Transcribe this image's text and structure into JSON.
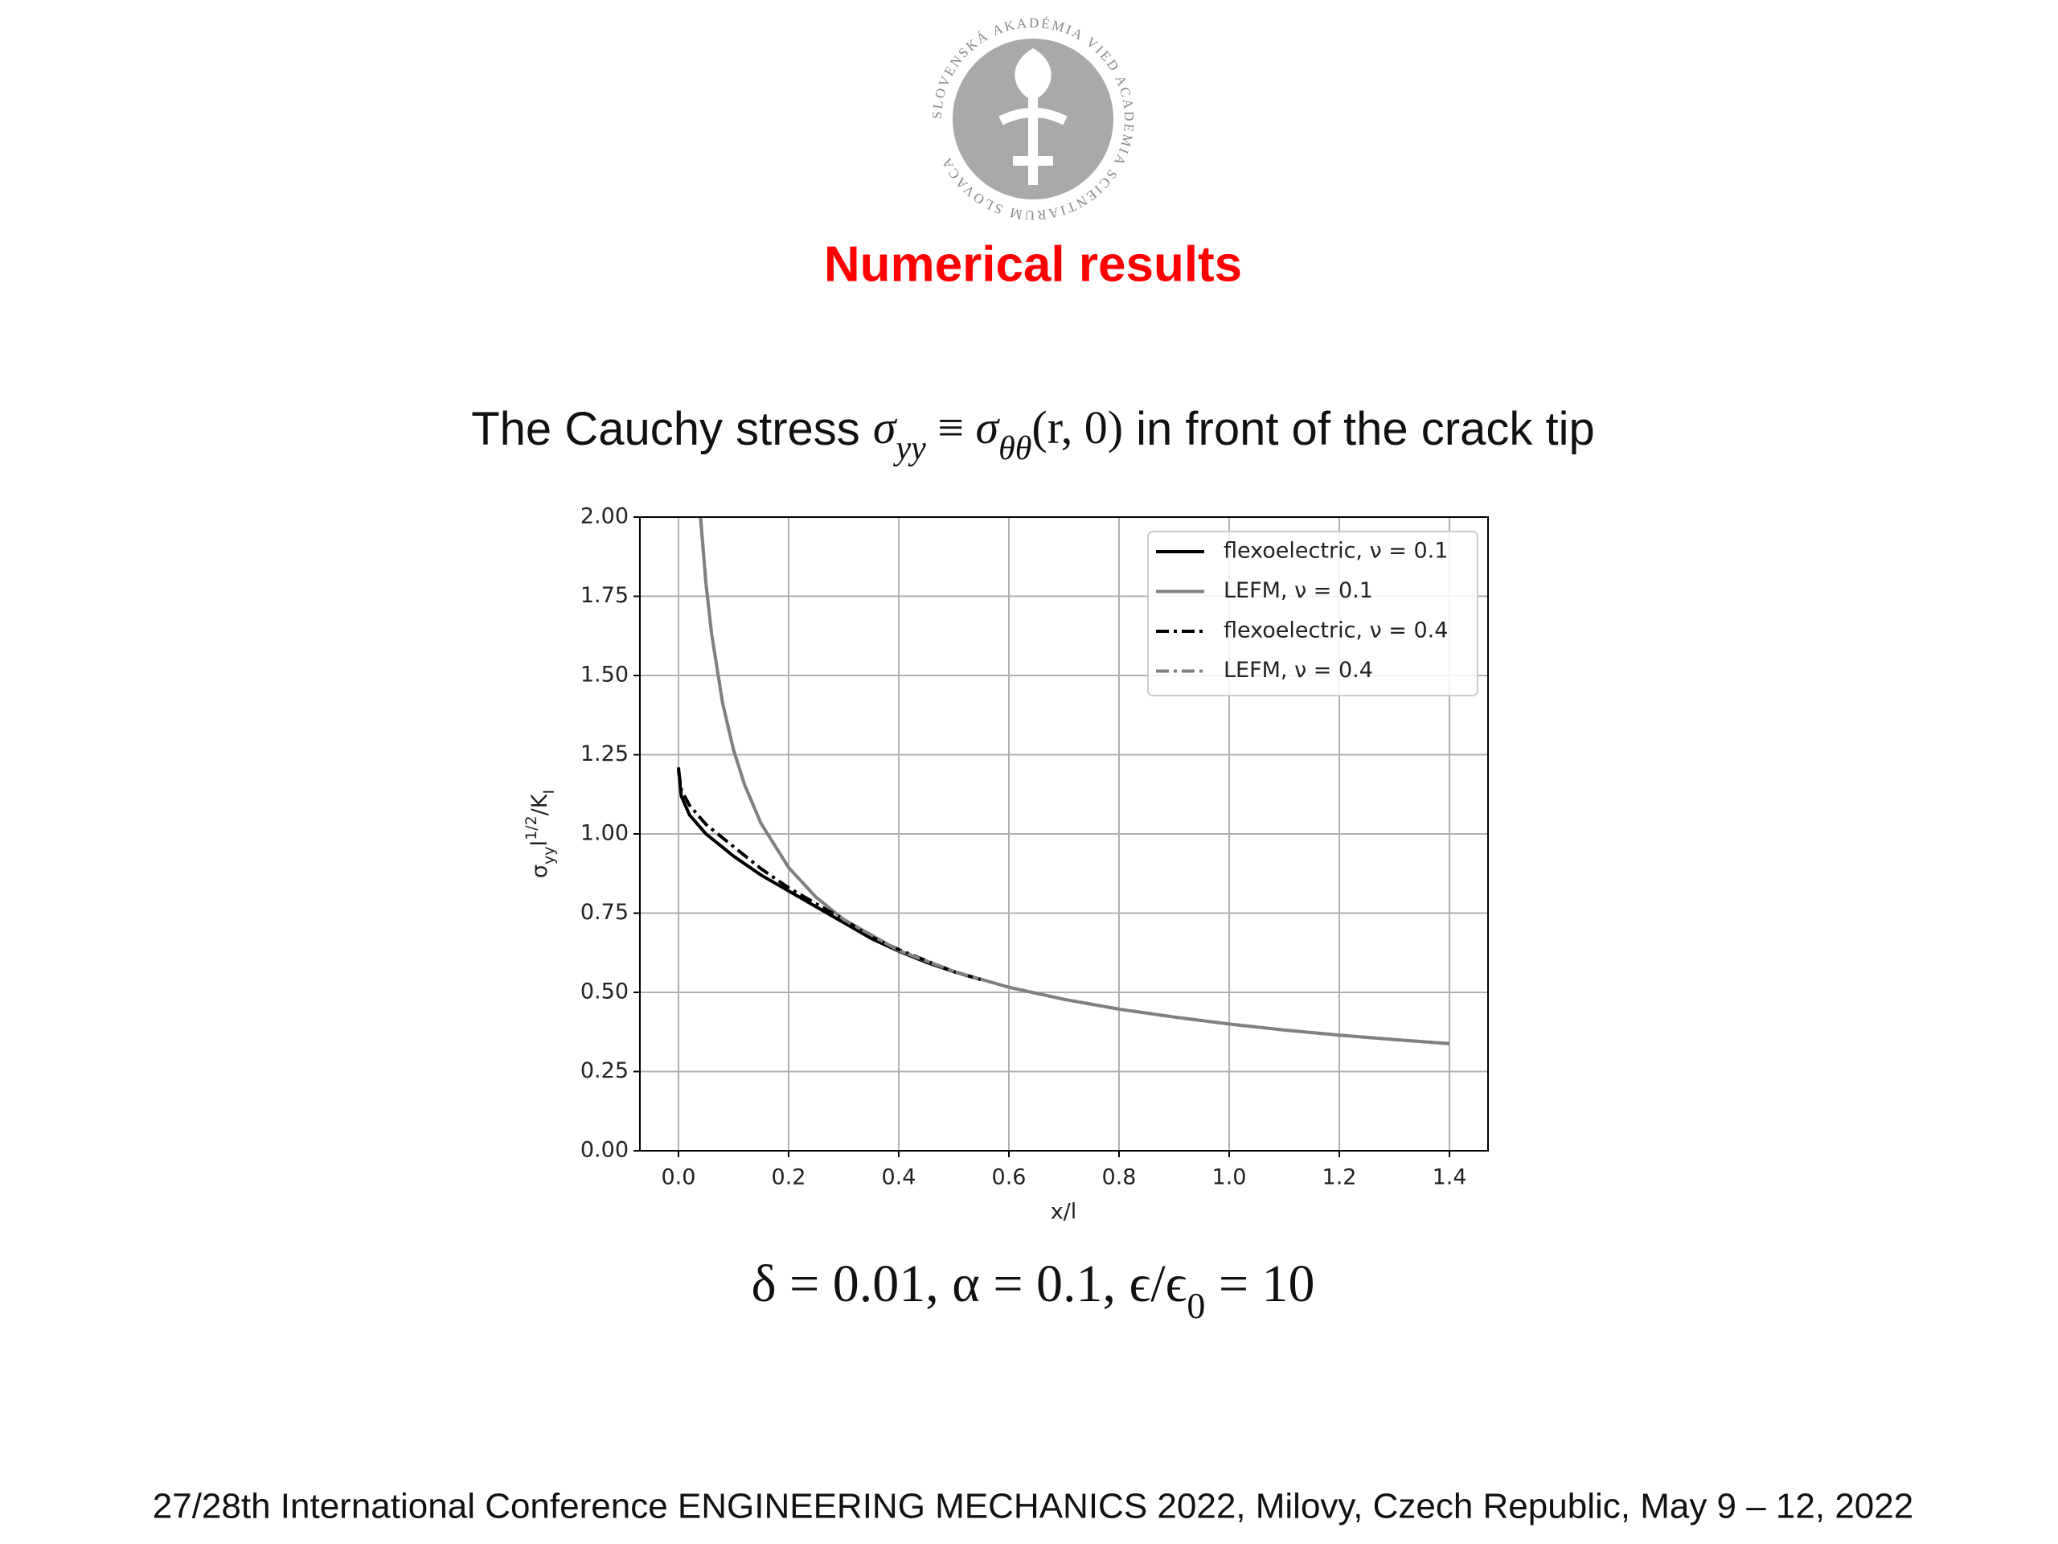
{
  "logo_text": "SLOVENSKÁ AKADÉMIA VIED ACADEMIA SCIENTIARUM SLOVACA",
  "title": "Numerical results",
  "heading": [
    "The Cauchy stress ",
    "σ",
    "yy",
    " ≡ ",
    "σ",
    "θθ",
    "(r, 0)",
    " in front of the crack tip"
  ],
  "parameters": [
    "δ = 0.01, α = 0.1,  ϵ/ϵ",
    "0",
    " = 10"
  ],
  "footer": "27/28th International Conference ENGINEERING MECHANICS 2022, Milovy, Czech Republic, May 9 – 12, 2022",
  "chart_data": {
    "type": "line",
    "xlabel": "x/l",
    "ylabel": [
      "σ",
      "yy",
      "l",
      "1/2",
      "/K",
      "I"
    ],
    "xlim": [
      -0.07,
      1.47
    ],
    "ylim": [
      0,
      2
    ],
    "xticks": [
      {
        "value": 0,
        "label": "0.0"
      },
      {
        "value": 0.2,
        "label": "0.2"
      },
      {
        "value": 0.4,
        "label": "0.4"
      },
      {
        "value": 0.6,
        "label": "0.6"
      },
      {
        "value": 0.8,
        "label": "0.8"
      },
      {
        "value": 1.0,
        "label": "1.0"
      },
      {
        "value": 1.2,
        "label": "1.2"
      },
      {
        "value": 1.4,
        "label": "1.4"
      }
    ],
    "yticks": [
      {
        "value": 0,
        "label": "0.00"
      },
      {
        "value": 0.25,
        "label": "0.25"
      },
      {
        "value": 0.5,
        "label": "0.50"
      },
      {
        "value": 0.75,
        "label": "0.75"
      },
      {
        "value": 1.0,
        "label": "1.00"
      },
      {
        "value": 1.25,
        "label": "1.25"
      },
      {
        "value": 1.5,
        "label": "1.50"
      },
      {
        "value": 1.75,
        "label": "1.75"
      },
      {
        "value": 2.0,
        "label": "2.00"
      }
    ],
    "grid": true,
    "legend": "upper right",
    "series": [
      {
        "name": "flexoelectric, ν = 0.1",
        "color": "#000000",
        "linestyle": "solid",
        "x": [
          0,
          0.005,
          0.02,
          0.05,
          0.1,
          0.15,
          0.2,
          0.25,
          0.3,
          0.35,
          0.4,
          0.45,
          0.5,
          0.55
        ],
        "values": [
          1.21,
          1.12,
          1.06,
          1.0,
          0.93,
          0.87,
          0.82,
          0.77,
          0.72,
          0.67,
          0.63,
          0.595,
          0.565,
          0.54
        ]
      },
      {
        "name": "LEFM, ν = 0.1",
        "color": "#808080",
        "linestyle": "solid",
        "x": [
          0.04,
          0.05,
          0.06,
          0.08,
          0.1,
          0.12,
          0.15,
          0.2,
          0.25,
          0.3,
          0.4,
          0.5,
          0.6,
          0.7,
          0.8,
          0.9,
          1.0,
          1.1,
          1.2,
          1.3,
          1.4
        ],
        "values": [
          2.0,
          1.789,
          1.633,
          1.414,
          1.265,
          1.155,
          1.033,
          0.894,
          0.8,
          0.73,
          0.632,
          0.566,
          0.516,
          0.478,
          0.447,
          0.422,
          0.4,
          0.381,
          0.365,
          0.351,
          0.338
        ]
      },
      {
        "name": "flexoelectric, ν = 0.4",
        "color": "#000000",
        "linestyle": "dashdot",
        "x": [
          0,
          0.005,
          0.02,
          0.05,
          0.1,
          0.15,
          0.2,
          0.25,
          0.3,
          0.35,
          0.4,
          0.45,
          0.5,
          0.55
        ],
        "values": [
          1.2,
          1.14,
          1.09,
          1.03,
          0.96,
          0.89,
          0.83,
          0.78,
          0.73,
          0.675,
          0.635,
          0.6,
          0.565,
          0.54
        ]
      },
      {
        "name": "LEFM, ν = 0.4",
        "color": "#808080",
        "linestyle": "dashdot",
        "x": [
          0.04,
          0.05,
          0.06,
          0.08,
          0.1,
          0.12,
          0.15,
          0.2,
          0.25,
          0.3,
          0.4,
          0.5,
          0.6,
          0.7,
          0.8,
          0.9,
          1.0,
          1.1,
          1.2,
          1.3,
          1.4
        ],
        "values": [
          2.0,
          1.789,
          1.633,
          1.414,
          1.265,
          1.155,
          1.033,
          0.894,
          0.8,
          0.73,
          0.632,
          0.566,
          0.516,
          0.478,
          0.447,
          0.422,
          0.4,
          0.381,
          0.365,
          0.351,
          0.338
        ]
      }
    ]
  }
}
